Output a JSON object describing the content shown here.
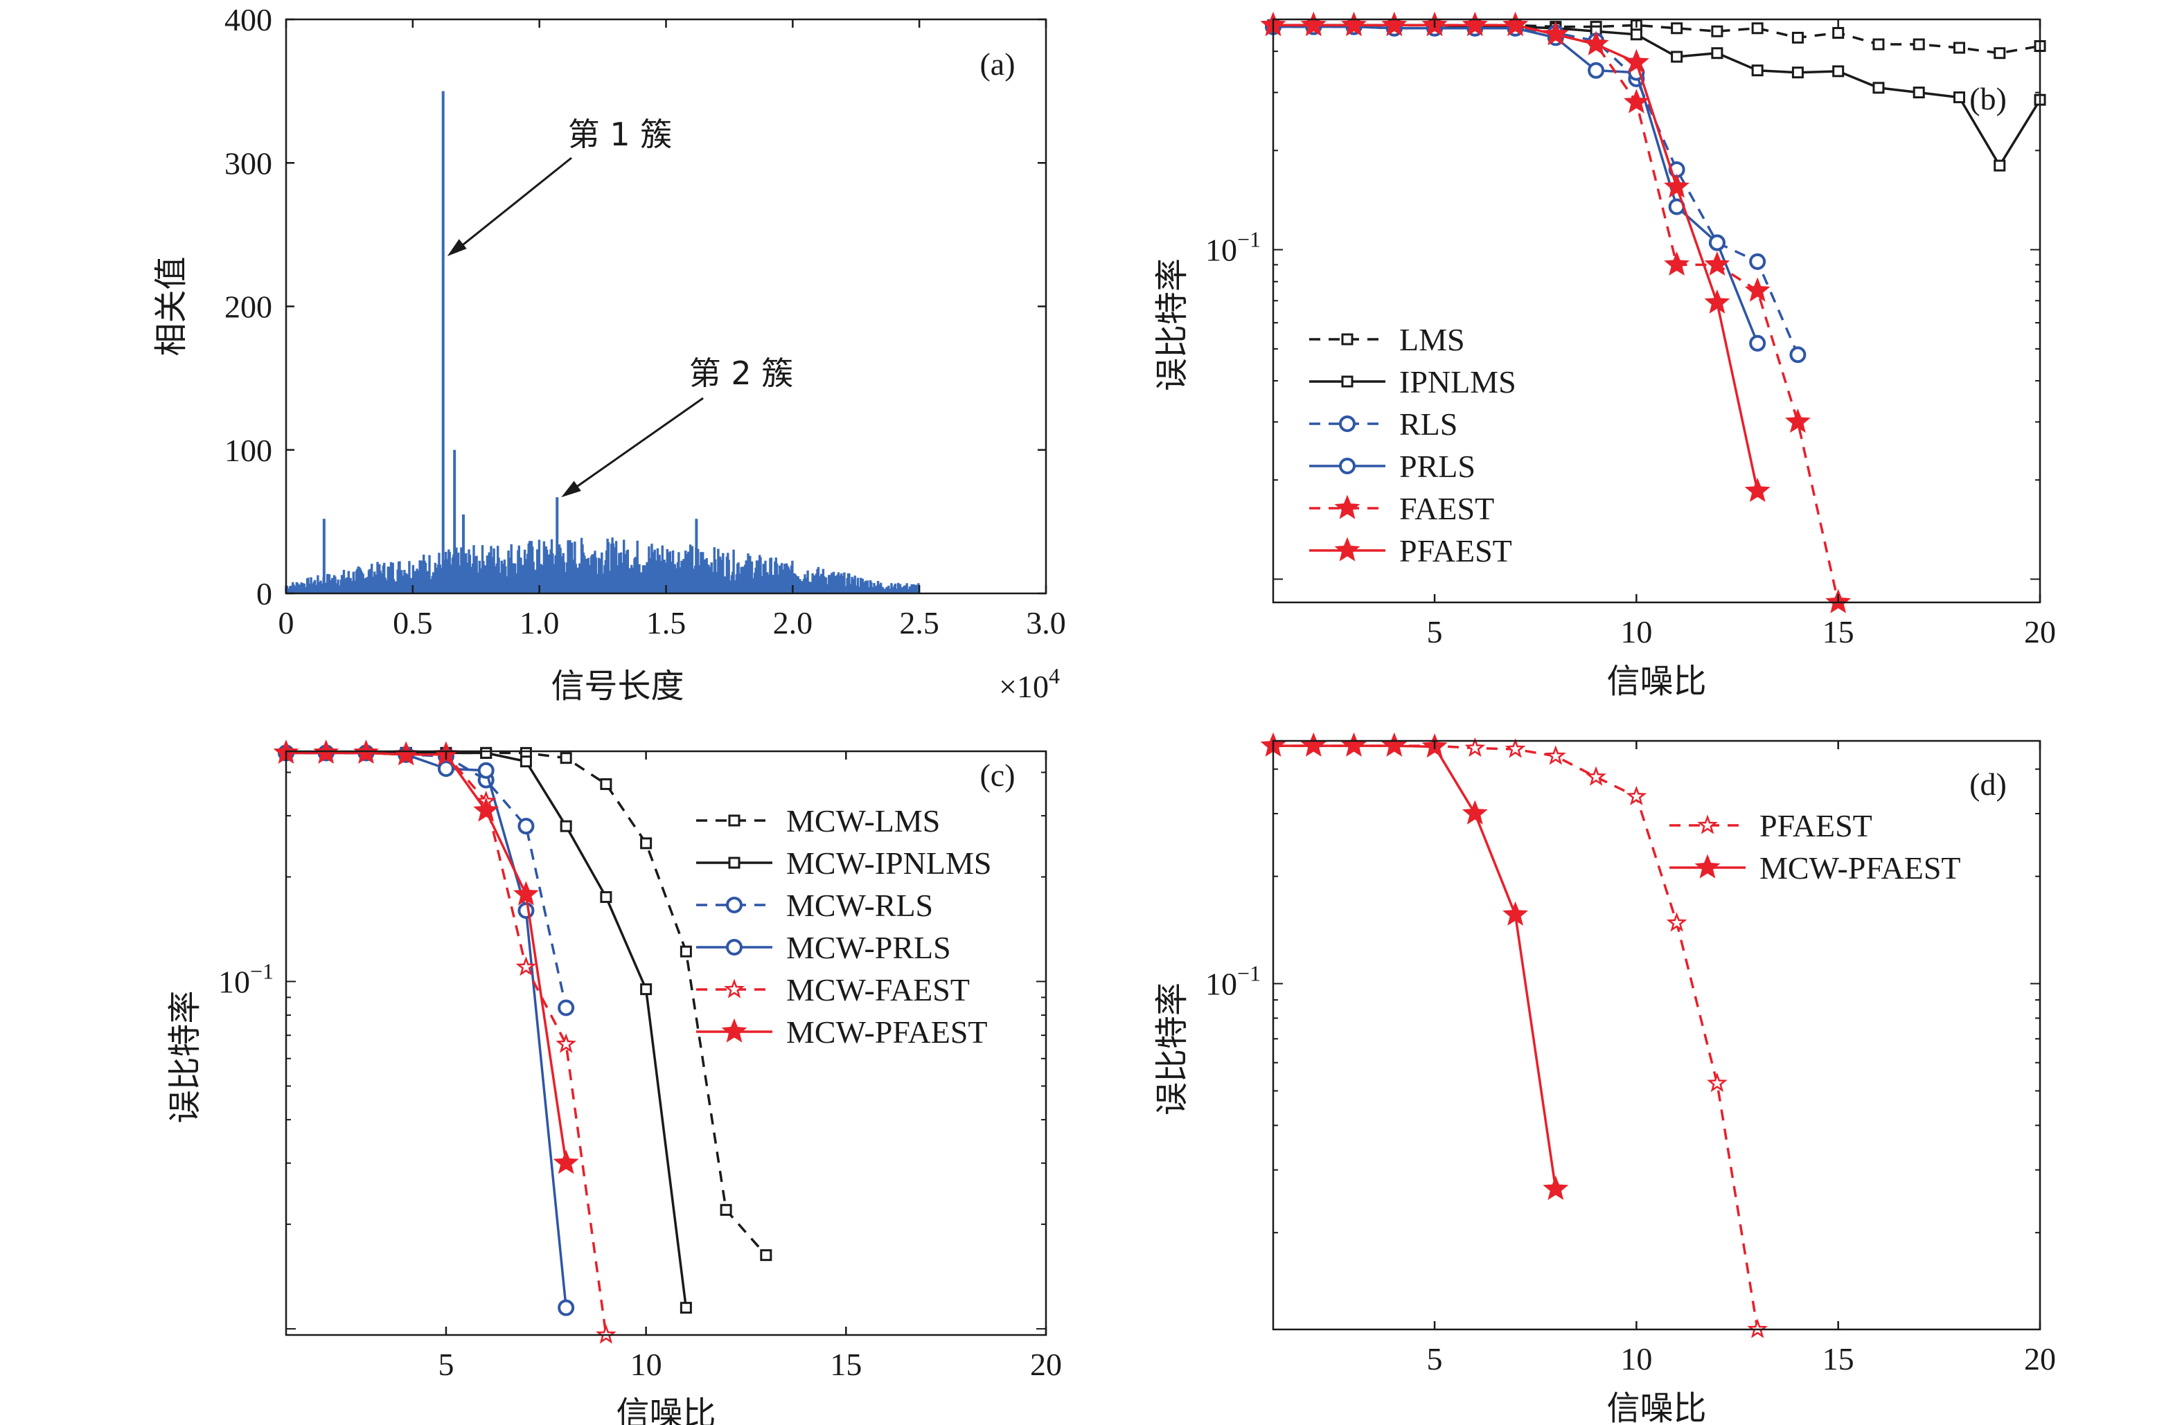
{
  "colors": {
    "black": "#1a1a1a",
    "blue": "#2e56a6",
    "red": "#e8202a",
    "bar": "#3a6bb8"
  },
  "chart_data": [
    {
      "id": "a",
      "type": "bar",
      "panel_label": "(a)",
      "xlabel": "信号长度",
      "ylabel": "相关值",
      "x_multiplier": "×10",
      "x_multiplier_exp": "4",
      "xlim": [
        0,
        3.0
      ],
      "ylim": [
        0,
        400
      ],
      "xticks": [
        "0",
        "0.5",
        "1.0",
        "1.5",
        "2.0",
        "2.5",
        "3.0"
      ],
      "yticks": [
        "0",
        "100",
        "200",
        "300",
        "400"
      ],
      "x_unit": "×10^4",
      "signal_extent": [
        0,
        2.5
      ],
      "noise_level": 30,
      "peaks": [
        {
          "x": 0.15,
          "y": 52
        },
        {
          "x": 0.62,
          "y": 350
        },
        {
          "x": 0.665,
          "y": 100
        },
        {
          "x": 0.7,
          "y": 55
        },
        {
          "x": 1.07,
          "y": 67
        },
        {
          "x": 1.62,
          "y": 52
        }
      ],
      "annotations": [
        {
          "text": "第 1 簇",
          "target_x": 0.62,
          "target_y": 235
        },
        {
          "text": "第 2 簇",
          "target_x": 1.07,
          "target_y": 67
        }
      ]
    },
    {
      "id": "b",
      "type": "line",
      "panel_label": "(b)",
      "xlabel": "信噪比",
      "ylabel": "误比特率",
      "xlim": [
        1,
        20
      ],
      "yscale": "log",
      "ylim": [
        0.0085,
        0.5
      ],
      "xticks": [
        5,
        10,
        15,
        20
      ],
      "ytick_label": "10",
      "ytick_exp": "−1",
      "legend_position": "left",
      "series": [
        {
          "name": "LMS",
          "color": "black",
          "dashed": true,
          "marker": "square",
          "x": [
            1,
            2,
            3,
            4,
            5,
            6,
            7,
            8,
            9,
            10,
            11,
            12,
            13,
            14,
            15,
            16,
            17,
            18,
            19,
            20
          ],
          "y": [
            0.48,
            0.48,
            0.48,
            0.48,
            0.48,
            0.48,
            0.48,
            0.475,
            0.475,
            0.48,
            0.47,
            0.46,
            0.47,
            0.44,
            0.455,
            0.42,
            0.42,
            0.41,
            0.395,
            0.415
          ]
        },
        {
          "name": "IPNLMS",
          "color": "black",
          "dashed": false,
          "marker": "square",
          "x": [
            1,
            2,
            3,
            4,
            5,
            6,
            7,
            8,
            9,
            10,
            11,
            12,
            13,
            14,
            15,
            16,
            17,
            18,
            19,
            20
          ],
          "y": [
            0.48,
            0.48,
            0.48,
            0.48,
            0.48,
            0.475,
            0.475,
            0.47,
            0.46,
            0.45,
            0.385,
            0.395,
            0.35,
            0.345,
            0.348,
            0.31,
            0.3,
            0.29,
            0.18,
            0.285
          ]
        },
        {
          "name": "RLS",
          "color": "blue",
          "dashed": true,
          "marker": "circle",
          "x": [
            1,
            2,
            3,
            4,
            5,
            6,
            7,
            8,
            9,
            10,
            11,
            12,
            13,
            14
          ],
          "y": [
            0.475,
            0.475,
            0.475,
            0.47,
            0.47,
            0.47,
            0.47,
            0.455,
            0.43,
            0.33,
            0.175,
            0.105,
            0.092,
            0.048
          ]
        },
        {
          "name": "PRLS",
          "color": "blue",
          "dashed": false,
          "marker": "circle",
          "x": [
            1,
            2,
            3,
            4,
            5,
            6,
            7,
            8,
            9,
            10,
            11,
            12,
            13
          ],
          "y": [
            0.475,
            0.475,
            0.475,
            0.47,
            0.47,
            0.47,
            0.47,
            0.44,
            0.35,
            0.345,
            0.135,
            0.105,
            0.052
          ]
        },
        {
          "name": "FAEST",
          "color": "red",
          "dashed": true,
          "marker": "star",
          "x": [
            1,
            2,
            3,
            4,
            5,
            6,
            7,
            8,
            9,
            10,
            11,
            12,
            13,
            14,
            15
          ],
          "y": [
            0.48,
            0.48,
            0.48,
            0.48,
            0.48,
            0.48,
            0.48,
            0.45,
            0.42,
            0.28,
            0.09,
            0.09,
            0.075,
            0.03,
            0.0085
          ]
        },
        {
          "name": "PFAEST",
          "color": "red",
          "dashed": false,
          "marker": "star",
          "x": [
            1,
            2,
            3,
            4,
            5,
            6,
            7,
            8,
            9,
            10,
            11,
            12,
            13
          ],
          "y": [
            0.48,
            0.48,
            0.48,
            0.48,
            0.48,
            0.48,
            0.48,
            0.45,
            0.42,
            0.37,
            0.155,
            0.069,
            0.0185
          ]
        }
      ]
    },
    {
      "id": "c",
      "type": "line",
      "panel_label": "(c)",
      "xlabel": "信噪比",
      "ylabel": "误比特率",
      "xlim": [
        1,
        20
      ],
      "yscale": "log",
      "ylim": [
        0.0096,
        0.46
      ],
      "xticks": [
        5,
        10,
        15,
        20
      ],
      "ytick_label": "10",
      "ytick_exp": "−1",
      "legend_position": "right",
      "series": [
        {
          "name": "MCW-LMS",
          "color": "black",
          "dashed": true,
          "marker": "square",
          "x": [
            1,
            2,
            3,
            4,
            5,
            6,
            7,
            8,
            9,
            10,
            11,
            12,
            13
          ],
          "y": [
            0.455,
            0.455,
            0.455,
            0.455,
            0.455,
            0.455,
            0.455,
            0.44,
            0.37,
            0.25,
            0.122,
            0.022,
            0.0163
          ]
        },
        {
          "name": "MCW-IPNLMS",
          "color": "black",
          "dashed": false,
          "marker": "square",
          "x": [
            1,
            2,
            3,
            4,
            5,
            6,
            7,
            8,
            9,
            10,
            11
          ],
          "y": [
            0.455,
            0.455,
            0.455,
            0.455,
            0.455,
            0.455,
            0.43,
            0.28,
            0.175,
            0.095,
            0.0115
          ]
        },
        {
          "name": "MCW-RLS",
          "color": "blue",
          "dashed": true,
          "marker": "circle",
          "x": [
            1,
            2,
            3,
            4,
            5,
            6,
            7,
            8
          ],
          "y": [
            0.455,
            0.455,
            0.455,
            0.45,
            0.445,
            0.38,
            0.28,
            0.084
          ]
        },
        {
          "name": "MCW-PRLS",
          "color": "blue",
          "dashed": false,
          "marker": "circle",
          "x": [
            1,
            2,
            3,
            4,
            5,
            6,
            7,
            8
          ],
          "y": [
            0.455,
            0.455,
            0.455,
            0.45,
            0.41,
            0.405,
            0.16,
            0.0115
          ]
        },
        {
          "name": "MCW-FAEST",
          "color": "red",
          "dashed": true,
          "marker": "star",
          "x": [
            1,
            2,
            3,
            4,
            5,
            6,
            7,
            8,
            9
          ],
          "y": [
            0.455,
            0.455,
            0.455,
            0.45,
            0.45,
            0.33,
            0.11,
            0.066,
            0.0096
          ]
        },
        {
          "name": "MCW-PFAEST",
          "color": "red",
          "dashed": false,
          "marker": "star",
          "x": [
            1,
            2,
            3,
            4,
            5,
            6,
            7,
            8
          ],
          "y": [
            0.455,
            0.455,
            0.455,
            0.45,
            0.45,
            0.31,
            0.178,
            0.03
          ]
        }
      ]
    },
    {
      "id": "d",
      "type": "line",
      "panel_label": "(d)",
      "xlabel": "信噪比",
      "ylabel": "误比特率",
      "xlim": [
        1,
        20
      ],
      "yscale": "log",
      "ylim": [
        0.0107,
        0.48
      ],
      "xticks": [
        5,
        10,
        15,
        20
      ],
      "ytick_label": "10",
      "ytick_exp": "−1",
      "legend_position": "right",
      "series": [
        {
          "name": "PFAEST",
          "color": "red",
          "dashed": true,
          "marker": "star",
          "x": [
            1,
            2,
            3,
            4,
            5,
            6,
            7,
            8,
            9,
            10,
            11,
            12,
            13
          ],
          "y": [
            0.465,
            0.465,
            0.465,
            0.465,
            0.465,
            0.458,
            0.455,
            0.435,
            0.38,
            0.335,
            0.148,
            0.0525,
            0.0107
          ]
        },
        {
          "name": "MCW-PFAEST",
          "color": "red",
          "dashed": false,
          "marker": "star",
          "x": [
            1,
            2,
            3,
            4,
            5,
            6,
            7,
            8
          ],
          "y": [
            0.465,
            0.465,
            0.465,
            0.465,
            0.462,
            0.3,
            0.156,
            0.0265
          ]
        }
      ]
    }
  ]
}
